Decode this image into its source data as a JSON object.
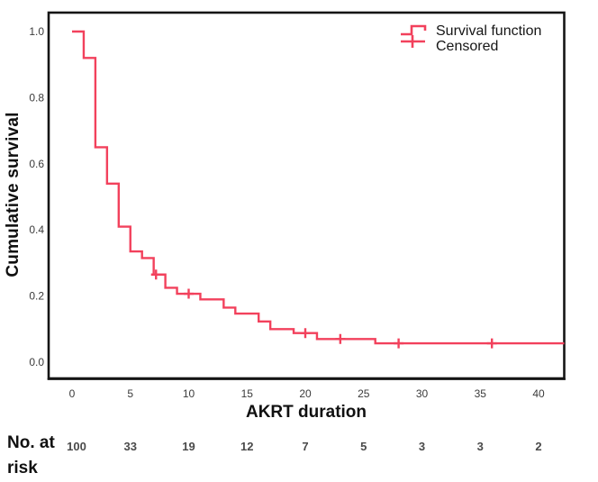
{
  "figure": {
    "ylabel": "Cumulative survival",
    "xlabel": "AKRT duration"
  },
  "legend": {
    "position": "top-right",
    "items": [
      {
        "label": "Survival function",
        "symbol": "step-line"
      },
      {
        "label": "Censored",
        "symbol": "plus-cross"
      }
    ]
  },
  "chart_data": {
    "type": "line",
    "subtype": "kaplan-meier-step",
    "title": "",
    "xlabel": "AKRT duration",
    "ylabel": "Cumulative survival",
    "xlim": [
      -2.1,
      42.2
    ],
    "ylim": [
      -0.05,
      1.06
    ],
    "xticks": [
      0,
      5,
      10,
      15,
      20,
      25,
      30,
      35,
      40
    ],
    "ytick_labels": [
      "0.0",
      "0.2",
      "0.4",
      "0.6",
      "0.8",
      "1.0"
    ],
    "grid": false,
    "legend_position": "top-right",
    "series": [
      {
        "name": "Survival function",
        "steps": [
          [
            0,
            1.0
          ],
          [
            1,
            0.92
          ],
          [
            2,
            0.65
          ],
          [
            3,
            0.54
          ],
          [
            4,
            0.41
          ],
          [
            5,
            0.335
          ],
          [
            6,
            0.315
          ],
          [
            7,
            0.265
          ],
          [
            8,
            0.225
          ],
          [
            9,
            0.207
          ],
          [
            11,
            0.19
          ],
          [
            13,
            0.165
          ],
          [
            14,
            0.147
          ],
          [
            16,
            0.123
          ],
          [
            17,
            0.1
          ],
          [
            19,
            0.088
          ],
          [
            21,
            0.07
          ],
          [
            26,
            0.057
          ]
        ],
        "end_x": 42.2
      }
    ],
    "censored": [
      [
        7.2,
        0.265
      ],
      [
        10,
        0.207
      ],
      [
        20,
        0.088
      ],
      [
        23,
        0.07
      ],
      [
        28,
        0.057
      ],
      [
        36,
        0.057
      ]
    ],
    "colors": {
      "line": "#f2415c",
      "axis": "#151515"
    },
    "risk_table": {
      "label": "No. at risk",
      "times": [
        0,
        5,
        10,
        15,
        20,
        25,
        30,
        35,
        40
      ],
      "counts": [
        100,
        33,
        19,
        12,
        7,
        5,
        3,
        3,
        2
      ]
    }
  }
}
